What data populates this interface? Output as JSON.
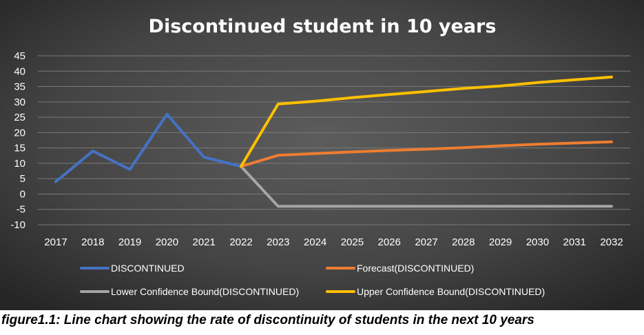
{
  "chart_data": {
    "type": "line",
    "title": "Discontinued student in 10 years",
    "xlabel": "",
    "ylabel": "",
    "x": [
      "2017",
      "2018",
      "2019",
      "2020",
      "2021",
      "2022",
      "2023",
      "2024",
      "2025",
      "2026",
      "2027",
      "2028",
      "2029",
      "2030",
      "2031",
      "2032"
    ],
    "ylim": [
      -10,
      45
    ],
    "yticks": [
      45,
      40,
      35,
      30,
      25,
      20,
      15,
      10,
      5,
      0,
      -5,
      -10
    ],
    "grid": true,
    "legend_position": "bottom",
    "series": [
      {
        "name": "DISCONTINUED",
        "color": "#4472C4",
        "values": [
          4,
          14,
          8,
          26,
          12,
          9,
          null,
          null,
          null,
          null,
          null,
          null,
          null,
          null,
          null,
          null
        ]
      },
      {
        "name": "Forecast(DISCONTINUED)",
        "color": "#ED7D31",
        "values": [
          null,
          null,
          null,
          null,
          null,
          9,
          12.6,
          13.2,
          13.7,
          14.2,
          14.6,
          15.1,
          15.7,
          16.2,
          16.6,
          17
        ]
      },
      {
        "name": "Lower Confidence Bound(DISCONTINUED)",
        "color": "#A5A5A5",
        "values": [
          null,
          null,
          null,
          null,
          null,
          9,
          -4,
          -4,
          -4,
          -4,
          -4,
          -4,
          -4,
          -4,
          -4,
          -4
        ]
      },
      {
        "name": "Upper Confidence Bound(DISCONTINUED)",
        "color": "#FFC000",
        "values": [
          null,
          null,
          null,
          null,
          null,
          9,
          29.3,
          30.2,
          31.4,
          32.4,
          33.4,
          34.4,
          35.2,
          36.3,
          37.2,
          38.1
        ]
      }
    ]
  },
  "caption": "figure1.1: Line chart showing the rate of discontinuity of students in the next 10 years",
  "colors": {
    "background_center": "#5a5a5a",
    "background_edge": "#2b2b2b"
  }
}
